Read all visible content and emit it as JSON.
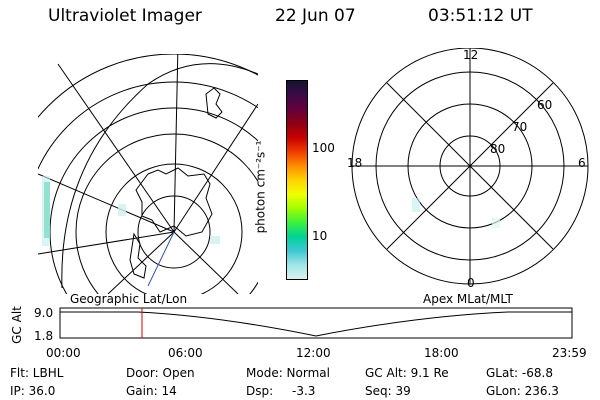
{
  "header": {
    "title": "Ultraviolet Imager",
    "date": "22 Jun 07",
    "time": "03:51:12 UT"
  },
  "colorbar": {
    "unit_label": "photon cm⁻²s⁻¹",
    "ticks": [
      "100",
      "10"
    ],
    "colors": [
      "#141432",
      "#3c0a46",
      "#64003c",
      "#8c0014",
      "#c80000",
      "#f03c00",
      "#ff8c00",
      "#ffd200",
      "#f0ff00",
      "#a0ff00",
      "#3cf03c",
      "#00d296",
      "#3cc8d2",
      "#a0e6e6",
      "#dcf0f0"
    ]
  },
  "map_left": {
    "label": "Geographic Lat/Lon"
  },
  "map_right": {
    "label": "Apex MLat/MLT",
    "mlt_labels": {
      "top": "12",
      "left": "18",
      "right": "6",
      "bottom": "0"
    },
    "lat_labels": [
      "60",
      "70",
      "80"
    ]
  },
  "altitude_plot": {
    "ylabel": "GC Alt",
    "yticks": [
      "9.0",
      "1.8"
    ],
    "xticks": [
      "00:00",
      "06:00",
      "12:00",
      "18:00",
      "23:59"
    ],
    "marker_time": "03:51"
  },
  "info": {
    "flt": "Flt: LBHL",
    "ip": "IP: 36.0",
    "door": "Door: Open",
    "gain": "Gain: 14",
    "mode": "Mode: Normal",
    "dsp_label": "Dsp:",
    "dsp_value": "-3.3",
    "gc_alt": "GC Alt: 9.1 Re",
    "seq": "Seq: 39",
    "glat": "GLat: -68.8",
    "glon": "GLon: 236.3"
  }
}
